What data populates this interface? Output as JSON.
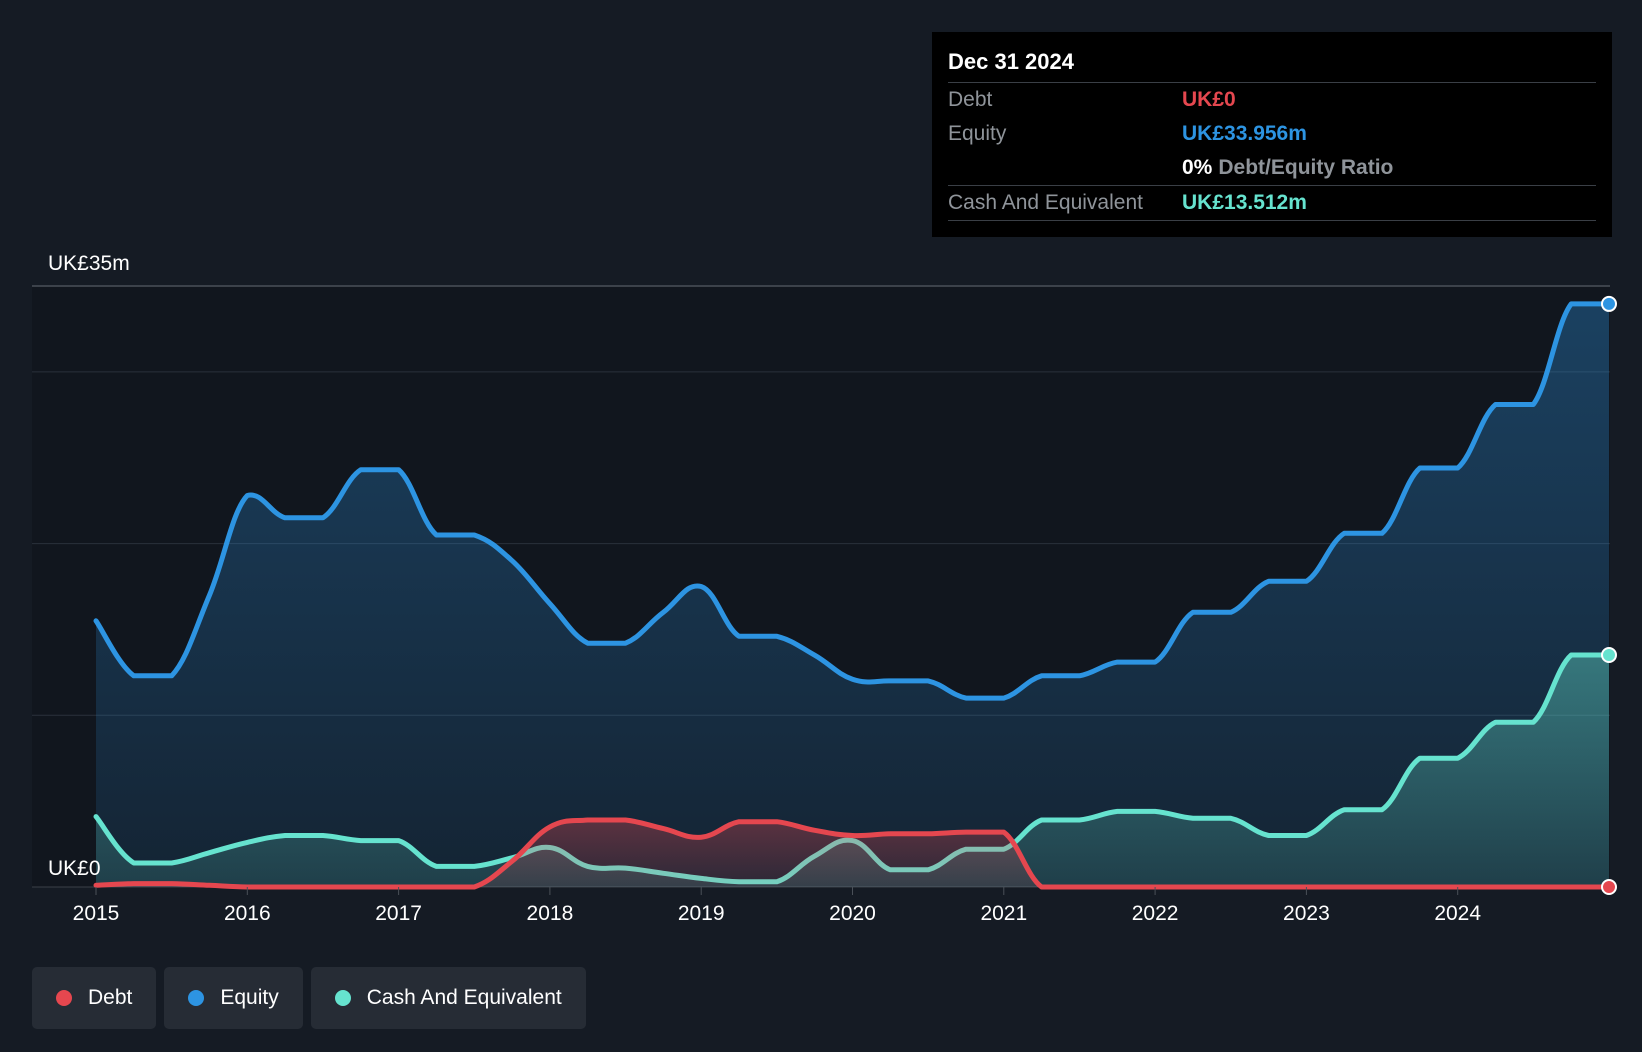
{
  "colors": {
    "background": "#151b24",
    "plot_background": "#11161e",
    "debt": "#e5474f",
    "equity": "#2d94e2",
    "cash": "#66e3cf"
  },
  "tooltip": {
    "date": "Dec 31 2024",
    "rows": [
      {
        "label": "Debt",
        "value": "UK£0"
      },
      {
        "label": "Equity",
        "value": "UK£33.956m"
      },
      {
        "label": "",
        "value": "0%",
        "suffix": "Debt/Equity Ratio"
      },
      {
        "label": "Cash And Equivalent",
        "value": "UK£13.512m"
      }
    ]
  },
  "legend": [
    {
      "label": "Debt",
      "icon": "debt-dot-icon"
    },
    {
      "label": "Equity",
      "icon": "equity-dot-icon"
    },
    {
      "label": "Cash And Equivalent",
      "icon": "cash-dot-icon"
    }
  ],
  "chart_data": {
    "type": "area",
    "title": "",
    "xlabel": "",
    "ylabel": "",
    "y_top_label": "UK£35m",
    "y_bottom_label": "UK£0",
    "ylim": [
      0,
      35
    ],
    "xlim": [
      2015.0,
      2025.0
    ],
    "x_ticks": [
      2015,
      2016,
      2017,
      2018,
      2019,
      2020,
      2021,
      2022,
      2023,
      2024
    ],
    "x_tick_labels": [
      "2015",
      "2016",
      "2017",
      "2018",
      "2019",
      "2020",
      "2021",
      "2022",
      "2023",
      "2024"
    ],
    "y_gridlines": [
      0,
      10,
      20,
      30,
      35
    ],
    "series": [
      {
        "name": "Equity",
        "key": "equity",
        "points": [
          [
            2015.0,
            15.5
          ],
          [
            2015.25,
            12.3
          ],
          [
            2015.5,
            12.3
          ],
          [
            2015.75,
            17.0
          ],
          [
            2016.0,
            22.8
          ],
          [
            2016.25,
            21.5
          ],
          [
            2016.5,
            21.5
          ],
          [
            2016.75,
            24.3
          ],
          [
            2017.0,
            24.3
          ],
          [
            2017.25,
            20.5
          ],
          [
            2017.5,
            20.5
          ],
          [
            2017.75,
            19.0
          ],
          [
            2018.0,
            16.5
          ],
          [
            2018.25,
            14.2
          ],
          [
            2018.5,
            14.2
          ],
          [
            2018.75,
            16.0
          ],
          [
            2019.0,
            17.5
          ],
          [
            2019.25,
            14.6
          ],
          [
            2019.5,
            14.6
          ],
          [
            2019.75,
            13.5
          ],
          [
            2020.0,
            12.1
          ],
          [
            2020.25,
            12.0
          ],
          [
            2020.5,
            12.0
          ],
          [
            2020.75,
            11.0
          ],
          [
            2021.0,
            11.0
          ],
          [
            2021.25,
            12.3
          ],
          [
            2021.5,
            12.3
          ],
          [
            2021.75,
            13.1
          ],
          [
            2022.0,
            13.1
          ],
          [
            2022.25,
            16.0
          ],
          [
            2022.5,
            16.0
          ],
          [
            2022.75,
            17.8
          ],
          [
            2023.0,
            17.8
          ],
          [
            2023.25,
            20.6
          ],
          [
            2023.5,
            20.6
          ],
          [
            2023.75,
            24.4
          ],
          [
            2024.0,
            24.4
          ],
          [
            2024.25,
            28.1
          ],
          [
            2024.5,
            28.1
          ],
          [
            2024.75,
            33.956
          ],
          [
            2025.0,
            33.956
          ]
        ]
      },
      {
        "name": "Cash And Equivalent",
        "key": "cash",
        "points": [
          [
            2015.0,
            4.1
          ],
          [
            2015.25,
            1.4
          ],
          [
            2015.5,
            1.4
          ],
          [
            2015.75,
            2.0
          ],
          [
            2016.0,
            2.6
          ],
          [
            2016.25,
            3.0
          ],
          [
            2016.5,
            3.0
          ],
          [
            2016.75,
            2.7
          ],
          [
            2017.0,
            2.7
          ],
          [
            2017.25,
            1.2
          ],
          [
            2017.5,
            1.2
          ],
          [
            2017.75,
            1.7
          ],
          [
            2018.0,
            2.3
          ],
          [
            2018.25,
            1.2
          ],
          [
            2018.5,
            1.1
          ],
          [
            2018.75,
            0.8
          ],
          [
            2019.0,
            0.5
          ],
          [
            2019.25,
            0.3
          ],
          [
            2019.5,
            0.3
          ],
          [
            2019.75,
            1.8
          ],
          [
            2020.0,
            2.7
          ],
          [
            2020.25,
            1.0
          ],
          [
            2020.5,
            1.0
          ],
          [
            2020.75,
            2.2
          ],
          [
            2021.0,
            2.2
          ],
          [
            2021.25,
            3.9
          ],
          [
            2021.5,
            3.9
          ],
          [
            2021.75,
            4.4
          ],
          [
            2022.0,
            4.4
          ],
          [
            2022.25,
            4.0
          ],
          [
            2022.5,
            4.0
          ],
          [
            2022.75,
            3.0
          ],
          [
            2023.0,
            3.0
          ],
          [
            2023.25,
            4.5
          ],
          [
            2023.5,
            4.5
          ],
          [
            2023.75,
            7.5
          ],
          [
            2024.0,
            7.5
          ],
          [
            2024.25,
            9.6
          ],
          [
            2024.5,
            9.6
          ],
          [
            2024.75,
            13.512
          ],
          [
            2025.0,
            13.512
          ]
        ]
      },
      {
        "name": "Debt",
        "key": "debt",
        "points": [
          [
            2015.0,
            0.1
          ],
          [
            2015.25,
            0.2
          ],
          [
            2015.5,
            0.2
          ],
          [
            2015.75,
            0.1
          ],
          [
            2016.0,
            0.0
          ],
          [
            2016.25,
            0.0
          ],
          [
            2016.5,
            0.0
          ],
          [
            2016.75,
            0.0
          ],
          [
            2017.0,
            0.0
          ],
          [
            2017.25,
            0.0
          ],
          [
            2017.5,
            0.0
          ],
          [
            2017.75,
            1.5
          ],
          [
            2018.0,
            3.5
          ],
          [
            2018.25,
            3.9
          ],
          [
            2018.5,
            3.9
          ],
          [
            2018.75,
            3.4
          ],
          [
            2019.0,
            2.9
          ],
          [
            2019.25,
            3.8
          ],
          [
            2019.5,
            3.8
          ],
          [
            2019.75,
            3.3
          ],
          [
            2020.0,
            3.0
          ],
          [
            2020.25,
            3.1
          ],
          [
            2020.5,
            3.1
          ],
          [
            2020.75,
            3.2
          ],
          [
            2021.0,
            3.2
          ],
          [
            2021.25,
            0.0
          ],
          [
            2021.5,
            0.0
          ],
          [
            2021.75,
            0.0
          ],
          [
            2022.0,
            0.0
          ],
          [
            2022.25,
            0.0
          ],
          [
            2022.5,
            0.0
          ],
          [
            2022.75,
            0.0
          ],
          [
            2023.0,
            0.0
          ],
          [
            2023.25,
            0.0
          ],
          [
            2023.5,
            0.0
          ],
          [
            2023.75,
            0.0
          ],
          [
            2024.0,
            0.0
          ],
          [
            2024.25,
            0.0
          ],
          [
            2024.5,
            0.0
          ],
          [
            2024.75,
            0.0
          ],
          [
            2025.0,
            0.0
          ]
        ]
      }
    ]
  }
}
